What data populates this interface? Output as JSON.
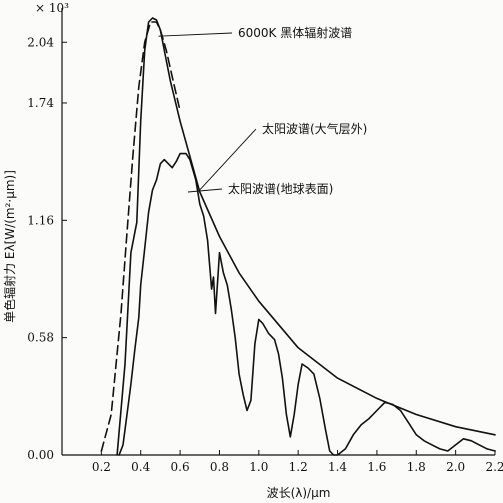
{
  "chart_data": {
    "type": "line",
    "title": "",
    "xlabel": "波长(λ)/μm",
    "ylabel": "单色辐射力 Eλ[W/(m²·μm)]",
    "y_multiplier": "× 10³",
    "xlim": [
      0.0,
      2.2
    ],
    "ylim": [
      0.0,
      2.16
    ],
    "xticks": [
      {
        "value": 0.2,
        "label": "0.2"
      },
      {
        "value": 0.4,
        "label": "0.4"
      },
      {
        "value": 0.6,
        "label": "0.6"
      },
      {
        "value": 0.8,
        "label": "0.8"
      },
      {
        "value": 1.0,
        "label": "1.0"
      },
      {
        "value": 1.2,
        "label": "1.2"
      },
      {
        "value": 1.4,
        "label": "1.4"
      },
      {
        "value": 1.6,
        "label": "1.6"
      },
      {
        "value": 1.8,
        "label": "1.8"
      },
      {
        "value": 2.0,
        "label": "2.0"
      },
      {
        "value": 2.2,
        "label": "2.2"
      }
    ],
    "yticks": [
      {
        "value": 0.0,
        "label": "0.00"
      },
      {
        "value": 0.58,
        "label": "0.58"
      },
      {
        "value": 1.16,
        "label": "1.16"
      },
      {
        "value": 1.74,
        "label": "1.74"
      },
      {
        "value": 2.04,
        "label": "2.04"
      }
    ],
    "grid": false,
    "legend": "none",
    "series": [
      {
        "name": "6000K 黑体辐射波谱",
        "style": "dashed",
        "color": "#111111",
        "x": [
          0.2,
          0.25,
          0.3,
          0.33,
          0.36,
          0.39,
          0.42,
          0.45,
          0.48,
          0.5,
          0.53,
          0.56,
          0.6
        ],
        "y": [
          0.02,
          0.2,
          0.7,
          1.1,
          1.48,
          1.82,
          2.04,
          2.14,
          2.14,
          2.1,
          2.0,
          1.87,
          1.7
        ]
      },
      {
        "name": "太阳波谱(大气层外)",
        "style": "solid",
        "color": "#111111",
        "x": [
          0.28,
          0.32,
          0.35,
          0.38,
          0.4,
          0.42,
          0.44,
          0.46,
          0.48,
          0.5,
          0.52,
          0.55,
          0.6,
          0.7,
          0.8,
          0.9,
          1.0,
          1.2,
          1.4,
          1.6,
          1.8,
          2.0,
          2.2
        ],
        "y": [
          0.0,
          0.45,
          1.0,
          1.15,
          1.65,
          2.0,
          2.14,
          2.16,
          2.15,
          2.1,
          2.0,
          1.85,
          1.65,
          1.3,
          1.08,
          0.9,
          0.76,
          0.53,
          0.38,
          0.28,
          0.2,
          0.14,
          0.1
        ]
      },
      {
        "name": "太阳波谱(地球表面)",
        "style": "solid",
        "color": "#111111",
        "x": [
          0.29,
          0.31,
          0.33,
          0.35,
          0.37,
          0.39,
          0.4,
          0.42,
          0.44,
          0.46,
          0.48,
          0.5,
          0.52,
          0.54,
          0.56,
          0.58,
          0.6,
          0.63,
          0.65,
          0.68,
          0.7,
          0.72,
          0.74,
          0.76,
          0.77,
          0.78,
          0.8,
          0.82,
          0.84,
          0.86,
          0.88,
          0.9,
          0.92,
          0.94,
          0.96,
          0.98,
          1.0,
          1.02,
          1.05,
          1.08,
          1.1,
          1.12,
          1.14,
          1.16,
          1.18,
          1.2,
          1.22,
          1.25,
          1.28,
          1.31,
          1.34,
          1.36,
          1.38,
          1.4,
          1.44,
          1.48,
          1.52,
          1.56,
          1.6,
          1.64,
          1.68,
          1.72,
          1.76,
          1.8,
          1.84,
          1.88,
          1.92,
          1.96,
          2.0,
          2.04,
          2.08,
          2.12,
          2.16,
          2.2
        ],
        "y": [
          0.0,
          0.05,
          0.2,
          0.35,
          0.52,
          0.68,
          0.84,
          1.02,
          1.2,
          1.31,
          1.36,
          1.44,
          1.46,
          1.44,
          1.42,
          1.45,
          1.49,
          1.49,
          1.46,
          1.36,
          1.24,
          1.18,
          1.06,
          0.82,
          0.88,
          0.7,
          1.0,
          0.9,
          0.84,
          0.72,
          0.58,
          0.4,
          0.3,
          0.22,
          0.27,
          0.55,
          0.67,
          0.65,
          0.6,
          0.57,
          0.5,
          0.38,
          0.2,
          0.09,
          0.2,
          0.35,
          0.45,
          0.43,
          0.4,
          0.28,
          0.12,
          0.02,
          0.0,
          0.0,
          0.03,
          0.1,
          0.15,
          0.18,
          0.22,
          0.26,
          0.25,
          0.22,
          0.16,
          0.1,
          0.07,
          0.05,
          0.03,
          0.02,
          0.05,
          0.08,
          0.07,
          0.05,
          0.03,
          0.02
        ]
      }
    ],
    "annotations": [
      {
        "text": "6000K 黑体辐射波谱",
        "x": 0.56,
        "y": 1.9
      },
      {
        "text": "太阳波谱(大气层外)",
        "x": 0.86,
        "y": 1.48
      },
      {
        "text": "太阳波谱(地球表面)",
        "x": 0.7,
        "y": 1.2
      }
    ]
  }
}
